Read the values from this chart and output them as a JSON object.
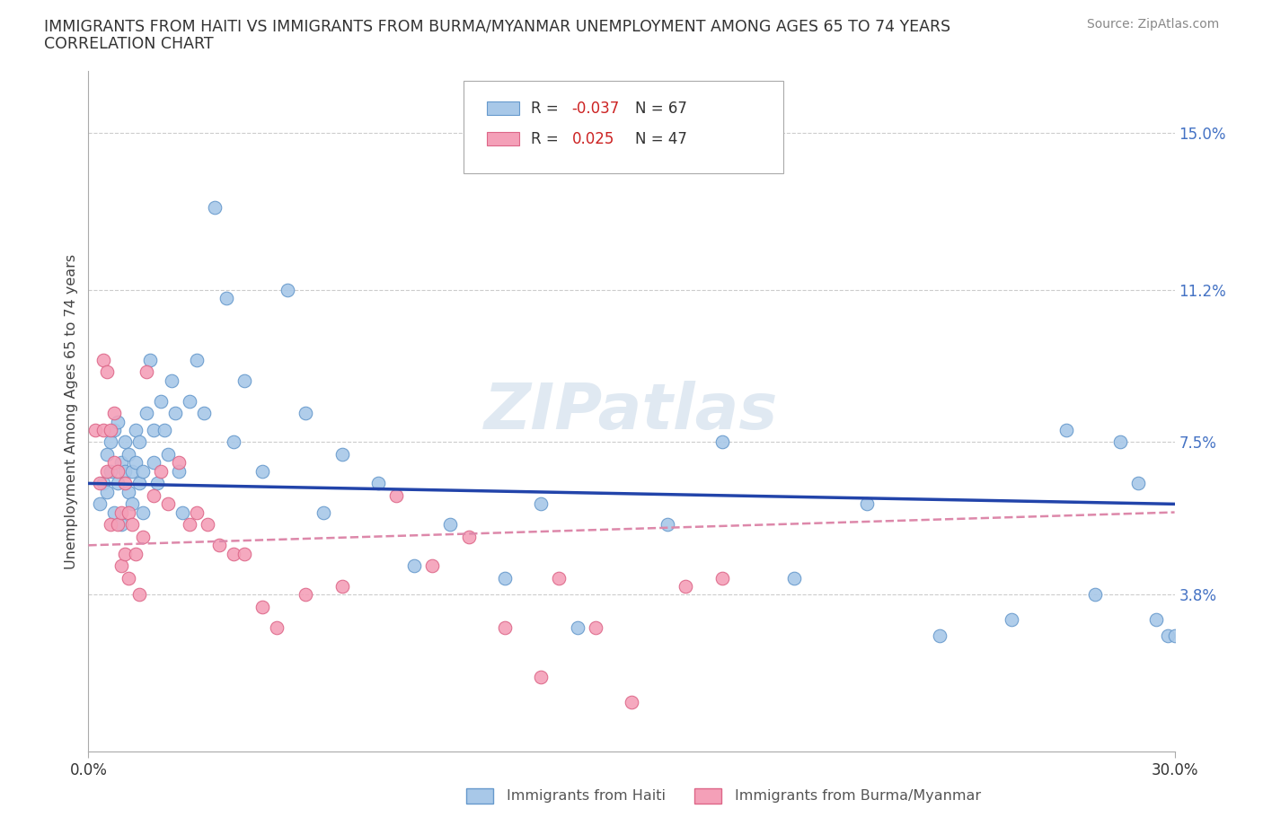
{
  "title_line1": "IMMIGRANTS FROM HAITI VS IMMIGRANTS FROM BURMA/MYANMAR UNEMPLOYMENT AMONG AGES 65 TO 74 YEARS",
  "title_line2": "CORRELATION CHART",
  "source_text": "Source: ZipAtlas.com",
  "ylabel": "Unemployment Among Ages 65 to 74 years",
  "xlim": [
    0.0,
    0.3
  ],
  "ylim": [
    0.0,
    0.165
  ],
  "ytick_labels": [
    "15.0%",
    "11.2%",
    "7.5%",
    "3.8%"
  ],
  "ytick_positions": [
    0.15,
    0.112,
    0.075,
    0.038
  ],
  "haiti_color": "#a8c8e8",
  "burma_color": "#f4a0b8",
  "haiti_edge_color": "#6699cc",
  "burma_edge_color": "#dd6688",
  "trend_haiti_color": "#2244aa",
  "trend_burma_color": "#dd88aa",
  "watermark": "ZIPatlas",
  "haiti_trend": [
    0.065,
    0.06
  ],
  "burma_trend": [
    0.05,
    0.058
  ],
  "haiti_x": [
    0.003,
    0.004,
    0.005,
    0.005,
    0.006,
    0.006,
    0.007,
    0.007,
    0.008,
    0.008,
    0.009,
    0.009,
    0.01,
    0.01,
    0.011,
    0.011,
    0.012,
    0.012,
    0.013,
    0.013,
    0.014,
    0.014,
    0.015,
    0.015,
    0.016,
    0.017,
    0.018,
    0.018,
    0.019,
    0.02,
    0.021,
    0.022,
    0.023,
    0.024,
    0.025,
    0.026,
    0.028,
    0.03,
    0.032,
    0.035,
    0.038,
    0.04,
    0.043,
    0.048,
    0.055,
    0.06,
    0.065,
    0.07,
    0.08,
    0.09,
    0.1,
    0.115,
    0.125,
    0.135,
    0.16,
    0.175,
    0.195,
    0.215,
    0.235,
    0.255,
    0.27,
    0.278,
    0.285,
    0.29,
    0.295,
    0.298,
    0.3
  ],
  "haiti_y": [
    0.06,
    0.065,
    0.063,
    0.072,
    0.068,
    0.075,
    0.058,
    0.078,
    0.065,
    0.08,
    0.055,
    0.07,
    0.068,
    0.075,
    0.063,
    0.072,
    0.06,
    0.068,
    0.07,
    0.078,
    0.065,
    0.075,
    0.058,
    0.068,
    0.082,
    0.095,
    0.07,
    0.078,
    0.065,
    0.085,
    0.078,
    0.072,
    0.09,
    0.082,
    0.068,
    0.058,
    0.085,
    0.095,
    0.082,
    0.132,
    0.11,
    0.075,
    0.09,
    0.068,
    0.112,
    0.082,
    0.058,
    0.072,
    0.065,
    0.045,
    0.055,
    0.042,
    0.06,
    0.03,
    0.055,
    0.075,
    0.042,
    0.06,
    0.028,
    0.032,
    0.078,
    0.038,
    0.075,
    0.065,
    0.032,
    0.028,
    0.028
  ],
  "burma_x": [
    0.002,
    0.003,
    0.004,
    0.004,
    0.005,
    0.005,
    0.006,
    0.006,
    0.007,
    0.007,
    0.008,
    0.008,
    0.009,
    0.009,
    0.01,
    0.01,
    0.011,
    0.011,
    0.012,
    0.013,
    0.014,
    0.015,
    0.016,
    0.018,
    0.02,
    0.022,
    0.025,
    0.028,
    0.03,
    0.033,
    0.036,
    0.04,
    0.043,
    0.048,
    0.052,
    0.06,
    0.07,
    0.085,
    0.095,
    0.105,
    0.115,
    0.125,
    0.13,
    0.14,
    0.15,
    0.165,
    0.175
  ],
  "burma_y": [
    0.078,
    0.065,
    0.095,
    0.078,
    0.092,
    0.068,
    0.078,
    0.055,
    0.07,
    0.082,
    0.055,
    0.068,
    0.058,
    0.045,
    0.065,
    0.048,
    0.058,
    0.042,
    0.055,
    0.048,
    0.038,
    0.052,
    0.092,
    0.062,
    0.068,
    0.06,
    0.07,
    0.055,
    0.058,
    0.055,
    0.05,
    0.048,
    0.048,
    0.035,
    0.03,
    0.038,
    0.04,
    0.062,
    0.045,
    0.052,
    0.03,
    0.018,
    0.042,
    0.03,
    0.012,
    0.04,
    0.042
  ]
}
